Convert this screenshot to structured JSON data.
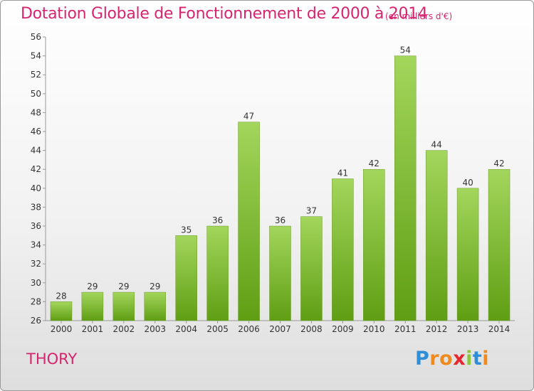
{
  "header": {
    "title": "Dotation Globale de Fonctionnement de 2000 à 2014",
    "unit": "(en milliers d'€)"
  },
  "footer": {
    "commune": "THORY",
    "logo_letters": [
      "P",
      "r",
      "o",
      "x",
      "i",
      "t",
      "i"
    ],
    "logo_colors": [
      "#2e8fd8",
      "#f08a1c",
      "#f08a1c",
      "#e8262e",
      "#8cc63f",
      "#2e8fd8",
      "#f08a1c"
    ]
  },
  "colors": {
    "bar_top": "#a3d65c",
    "bar_bottom": "#5f9e13",
    "accent": "#d6246e"
  },
  "chart_data": {
    "type": "bar",
    "title": "Dotation Globale de Fonctionnement de 2000 à 2014",
    "subtitle": "(en milliers d'€)",
    "categories": [
      "2000",
      "2001",
      "2002",
      "2003",
      "2004",
      "2005",
      "2006",
      "2007",
      "2008",
      "2009",
      "2010",
      "2011",
      "2012",
      "2013",
      "2014"
    ],
    "values": [
      28,
      29,
      29,
      29,
      35,
      36,
      47,
      36,
      37,
      41,
      42,
      54,
      44,
      40,
      42
    ],
    "ylim": [
      26,
      56
    ],
    "yticks": [
      26,
      28,
      30,
      32,
      34,
      36,
      38,
      40,
      42,
      44,
      46,
      48,
      50,
      52,
      54,
      56
    ],
    "grid": false,
    "xlabel": "",
    "ylabel": ""
  }
}
